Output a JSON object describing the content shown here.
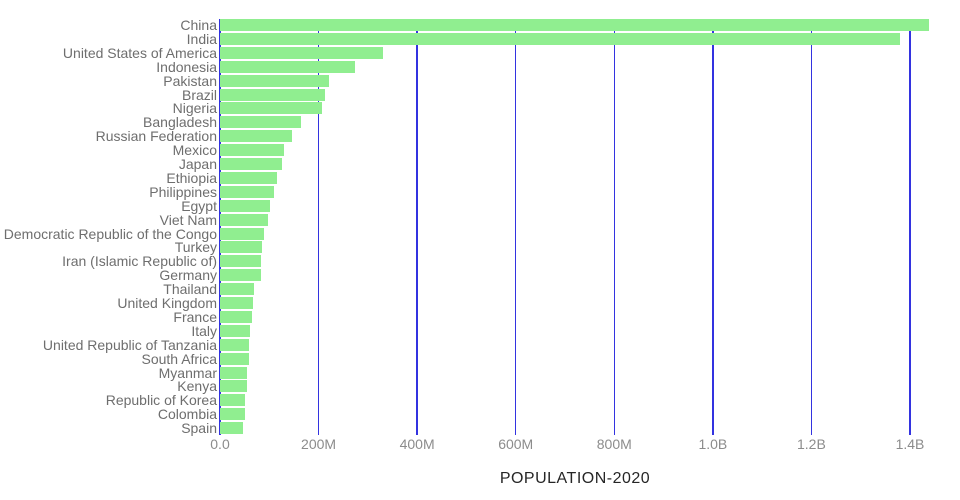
{
  "chart_data": {
    "type": "bar",
    "orientation": "horizontal",
    "title": "",
    "xlabel": "POPULATION-2020",
    "ylabel": "",
    "grid": true,
    "legend": false,
    "xlim_millions": [
      0,
      1450
    ],
    "x_ticks": [
      {
        "millions": 0,
        "label": "0.0"
      },
      {
        "millions": 200,
        "label": "200M"
      },
      {
        "millions": 400,
        "label": "400M"
      },
      {
        "millions": 600,
        "label": "600M"
      },
      {
        "millions": 800,
        "label": "800M"
      },
      {
        "millions": 1000,
        "label": "1.0B"
      },
      {
        "millions": 1200,
        "label": "1.2B"
      },
      {
        "millions": 1400,
        "label": "1.4B"
      }
    ],
    "categories": [
      "China",
      "India",
      "United States of America",
      "Indonesia",
      "Pakistan",
      "Brazil",
      "Nigeria",
      "Bangladesh",
      "Russian Federation",
      "Mexico",
      "Japan",
      "Ethiopia",
      "Philippines",
      "Egypt",
      "Viet Nam",
      "Democratic Republic of the Congo",
      "Turkey",
      "Iran (Islamic Republic of)",
      "Germany",
      "Thailand",
      "United Kingdom",
      "France",
      "Italy",
      "United Republic of Tanzania",
      "South Africa",
      "Myanmar",
      "Kenya",
      "Republic of Korea",
      "Colombia",
      "Spain"
    ],
    "values_millions": [
      1439.3,
      1380.0,
      331.0,
      273.5,
      220.9,
      212.6,
      206.1,
      164.7,
      145.9,
      128.9,
      126.5,
      115.0,
      109.6,
      102.3,
      97.3,
      89.6,
      84.3,
      84.0,
      83.8,
      69.8,
      67.9,
      65.3,
      60.5,
      59.7,
      59.3,
      54.4,
      53.8,
      51.3,
      50.9,
      46.8
    ],
    "colors": {
      "bar": "#90ee90",
      "gridline": "#3333e0",
      "category_label": "#6e6e6e",
      "tick_label": "#8c8c8c",
      "axis_title": "#262626",
      "background": "#ffffff"
    }
  }
}
